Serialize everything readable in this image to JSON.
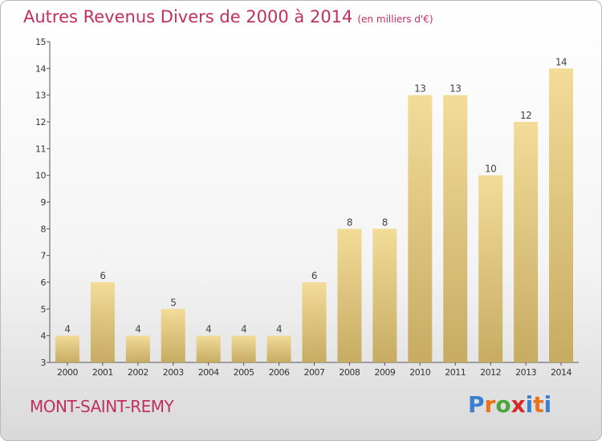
{
  "header": {
    "title": "Autres Revenus Divers de 2000 à 2014",
    "unit": "(en milliers d'€)"
  },
  "footer": {
    "commune": "MONT-SAINT-REMY",
    "logo_letters": [
      "P",
      "r",
      "o",
      "x",
      "i",
      "t",
      "i"
    ],
    "logo_colors": [
      "#3b7fd0",
      "#e8731c",
      "#4aa63c",
      "#d42a2a",
      "#3b7fd0",
      "#e8731c",
      "#3b7fd0"
    ]
  },
  "chart_data": {
    "type": "bar",
    "title": "Autres Revenus Divers de 2000 à 2014",
    "subtitle": "(en milliers d'€)",
    "categories": [
      "2000",
      "2001",
      "2002",
      "2003",
      "2004",
      "2005",
      "2006",
      "2007",
      "2008",
      "2009",
      "2010",
      "2011",
      "2012",
      "2013",
      "2014"
    ],
    "values": [
      4,
      6,
      4,
      5,
      4,
      4,
      4,
      6,
      8,
      8,
      13,
      13,
      10,
      12,
      14
    ],
    "ylim": [
      3,
      15
    ],
    "yticks": [
      3,
      4,
      5,
      6,
      7,
      8,
      9,
      10,
      11,
      12,
      13,
      14,
      15
    ],
    "grid": false,
    "bar_color": "#f2dc98",
    "bar_color_dark": "#c7ab63"
  }
}
